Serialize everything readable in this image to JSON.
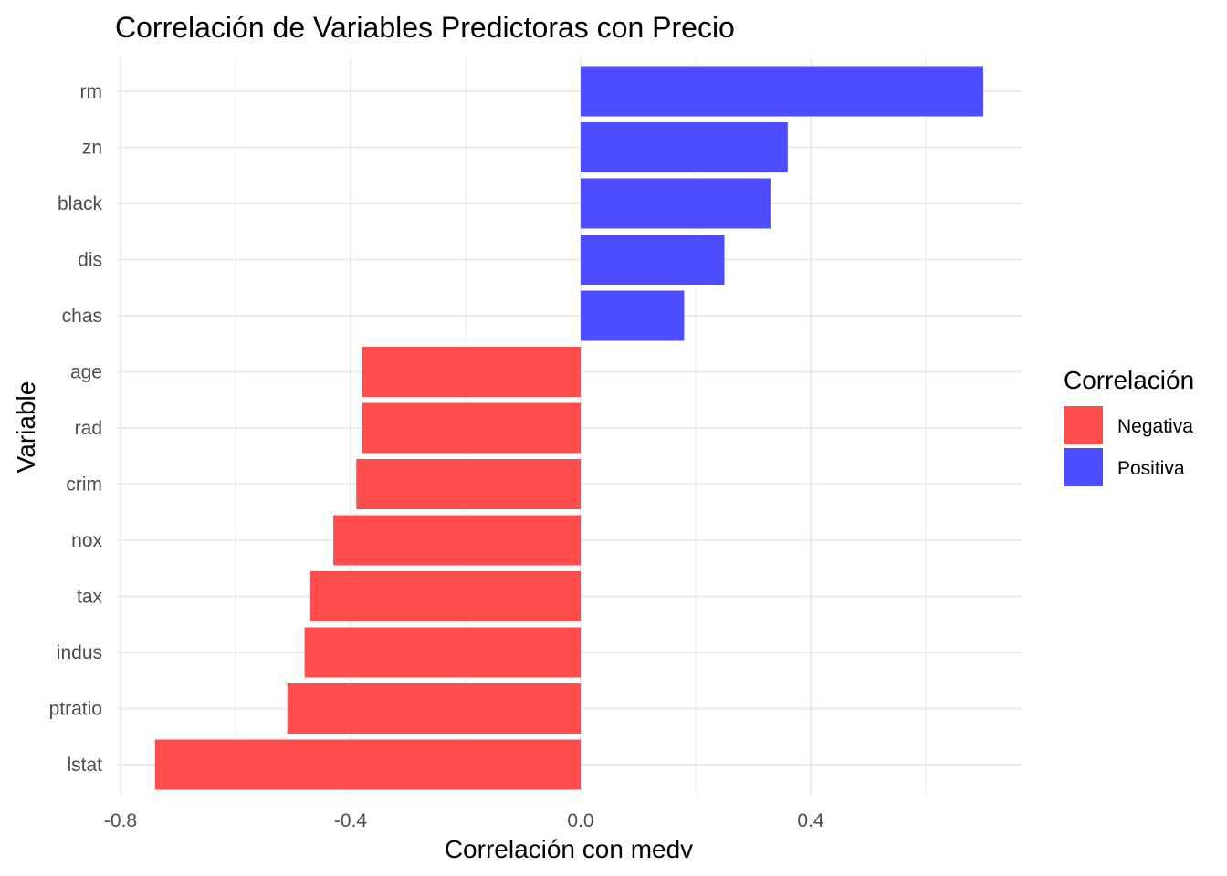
{
  "chart_data": {
    "type": "bar",
    "orientation": "horizontal",
    "title": "Correlación de Variables Predictoras con Precio",
    "xlabel": "Correlación con medv",
    "ylabel": "Variable",
    "xlim": [
      -0.8,
      0.78
    ],
    "x_ticks": [
      "-0.8",
      "-0.4",
      "0.0",
      "0.4"
    ],
    "x_tick_values": [
      -0.8,
      -0.4,
      0.0,
      0.4
    ],
    "grid": true,
    "legend": {
      "title": "Correlación",
      "position": "right",
      "entries": [
        {
          "label": "Negativa",
          "color": "#ff4d4d"
        },
        {
          "label": "Positiva",
          "color": "#4d4dff"
        }
      ]
    },
    "categories": [
      "rm",
      "zn",
      "black",
      "dis",
      "chas",
      "age",
      "rad",
      "crim",
      "nox",
      "tax",
      "indus",
      "ptratio",
      "lstat"
    ],
    "values": [
      0.7,
      0.36,
      0.33,
      0.25,
      0.18,
      -0.38,
      -0.38,
      -0.39,
      -0.43,
      -0.47,
      -0.48,
      -0.51,
      -0.74
    ],
    "groups": [
      "Positiva",
      "Positiva",
      "Positiva",
      "Positiva",
      "Positiva",
      "Negativa",
      "Negativa",
      "Negativa",
      "Negativa",
      "Negativa",
      "Negativa",
      "Negativa",
      "Negativa"
    ]
  }
}
